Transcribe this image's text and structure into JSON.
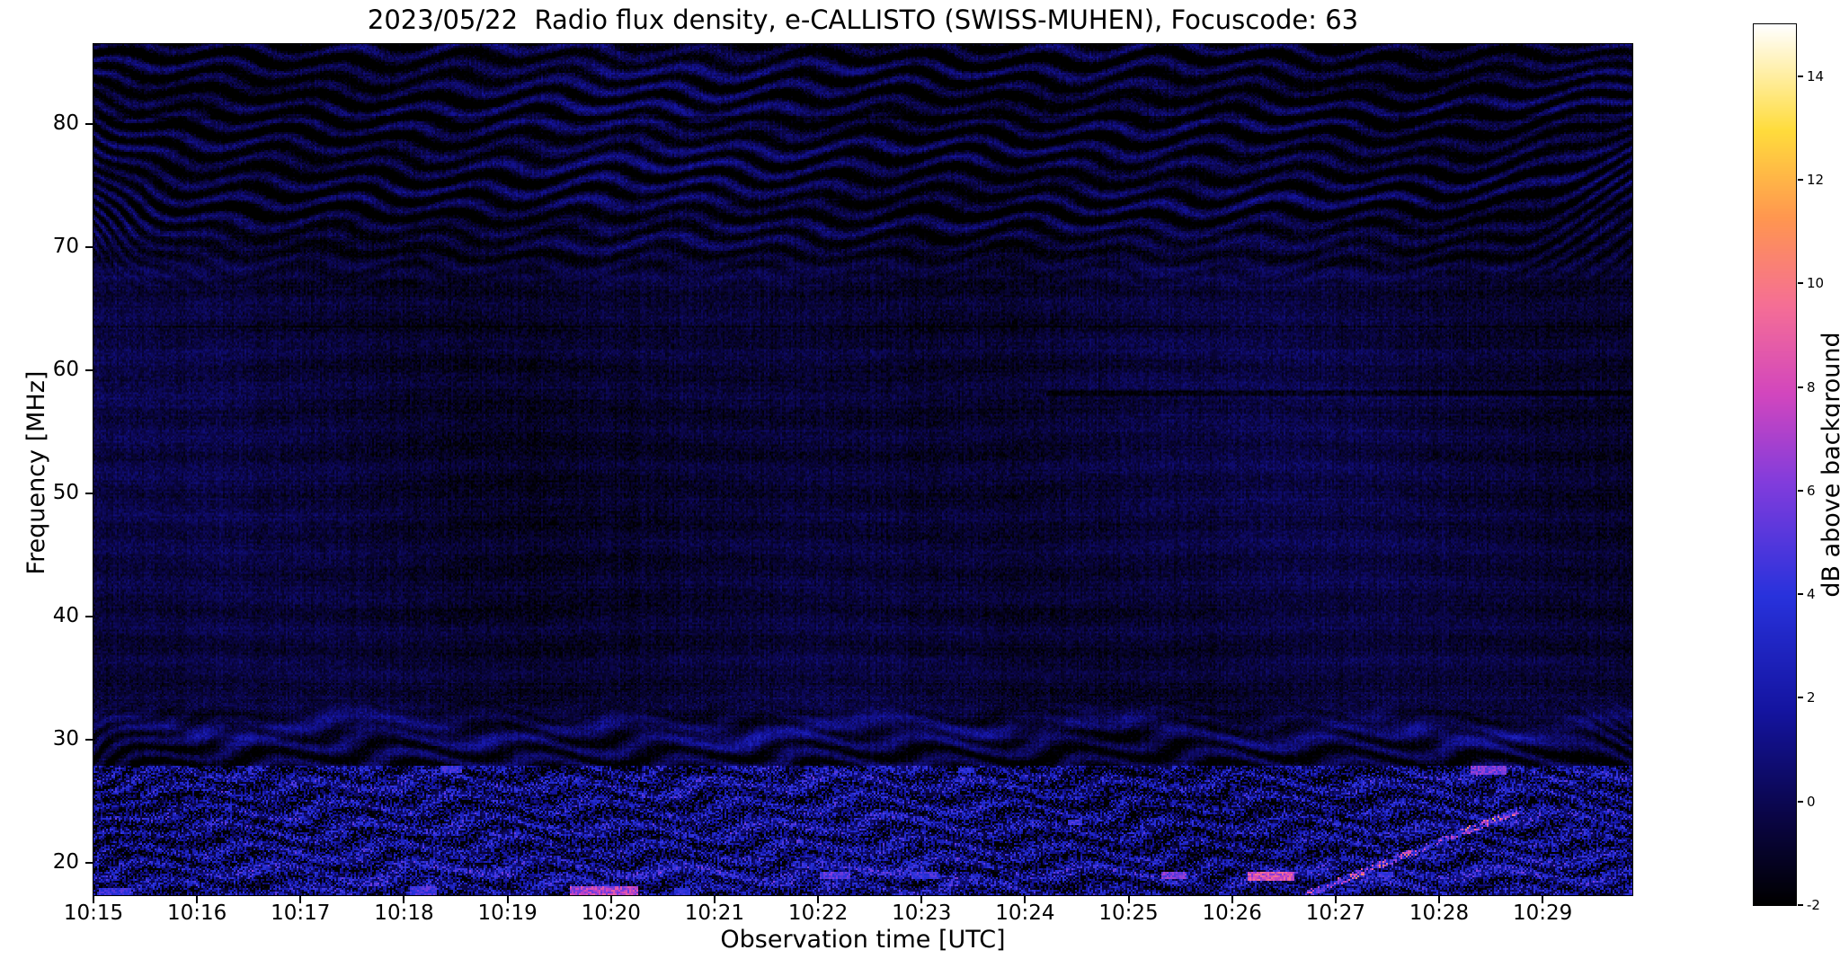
{
  "figure": {
    "background": "#ffffff",
    "text_color": "#000000"
  },
  "chart_data": {
    "type": "heatmap",
    "title": "2023/05/22  Radio flux density, e-CALLISTO (SWISS-MUHEN), Focuscode: 63",
    "xlabel": "Observation time [UTC]",
    "ylabel": "Frequency [MHz]",
    "x_ticks": [
      "10:15",
      "10:16",
      "10:17",
      "10:18",
      "10:19",
      "10:20",
      "10:21",
      "10:22",
      "10:23",
      "10:24",
      "10:25",
      "10:26",
      "10:27",
      "10:28",
      "10:29"
    ],
    "x_span_min": 14.867,
    "y_ticks": [
      20,
      30,
      40,
      50,
      60,
      70,
      80
    ],
    "freq_min_mhz": 17.4,
    "freq_max_mhz": 86.5,
    "grid": false,
    "colorbar": {
      "label": "dB above background",
      "ticks": [
        -2,
        0,
        2,
        4,
        6,
        8,
        10,
        12,
        14
      ],
      "vmin": -2,
      "vmax": 15,
      "colormap_stops": [
        [
          0.0,
          [
            0,
            0,
            0
          ]
        ],
        [
          0.1,
          [
            10,
            5,
            70
          ]
        ],
        [
          0.22,
          [
            20,
            20,
            160
          ]
        ],
        [
          0.35,
          [
            40,
            50,
            220
          ]
        ],
        [
          0.48,
          [
            130,
            60,
            220
          ]
        ],
        [
          0.58,
          [
            210,
            70,
            190
          ]
        ],
        [
          0.68,
          [
            245,
            110,
            150
          ]
        ],
        [
          0.78,
          [
            255,
            150,
            80
          ]
        ],
        [
          0.88,
          [
            255,
            220,
            60
          ]
        ],
        [
          1.0,
          [
            255,
            255,
            255
          ]
        ]
      ]
    },
    "background_level_db": 0.55,
    "noise_seed": 20230522,
    "interference": {
      "top_ripple_band_mhz": [
        66,
        86.5
      ],
      "top_ripple_spacing_mhz": 1.58,
      "bottom_ripple_band_mhz": [
        17.4,
        33.5
      ],
      "bottom_ripple_spacing_mhz": 1.72,
      "bright_band_center_mhz": 30.9,
      "bright_band2_center_mhz": 18.9,
      "dark_line_mhz": 58.2,
      "dark_line_start_min": 9.2,
      "speckle_row_mhz": [
        80.6,
        63.6
      ]
    },
    "bright_features": [
      [
        0.05,
        0.35,
        17.4,
        18.1,
        6
      ],
      [
        3.05,
        3.3,
        17.4,
        18.2,
        6.5
      ],
      [
        4.6,
        5.25,
        17.4,
        18.2,
        10
      ],
      [
        5.6,
        5.75,
        17.4,
        18.0,
        5.5
      ],
      [
        7.0,
        7.3,
        18.8,
        19.4,
        7
      ],
      [
        7.9,
        8.15,
        18.8,
        19.3,
        6
      ],
      [
        10.3,
        10.55,
        18.8,
        19.35,
        8
      ],
      [
        11.15,
        11.6,
        18.7,
        19.4,
        11
      ],
      [
        12.4,
        12.55,
        19.0,
        19.4,
        6
      ],
      [
        13.3,
        13.65,
        27.3,
        27.95,
        8
      ],
      [
        3.35,
        3.55,
        27.4,
        27.9,
        6
      ],
      [
        8.35,
        8.5,
        27.4,
        27.8,
        5
      ],
      [
        9.4,
        9.55,
        23.2,
        23.6,
        6
      ]
    ],
    "burst_trail": {
      "t0": 11.7,
      "f0": 17.5,
      "t1": 13.8,
      "f1": 24.5
    }
  }
}
